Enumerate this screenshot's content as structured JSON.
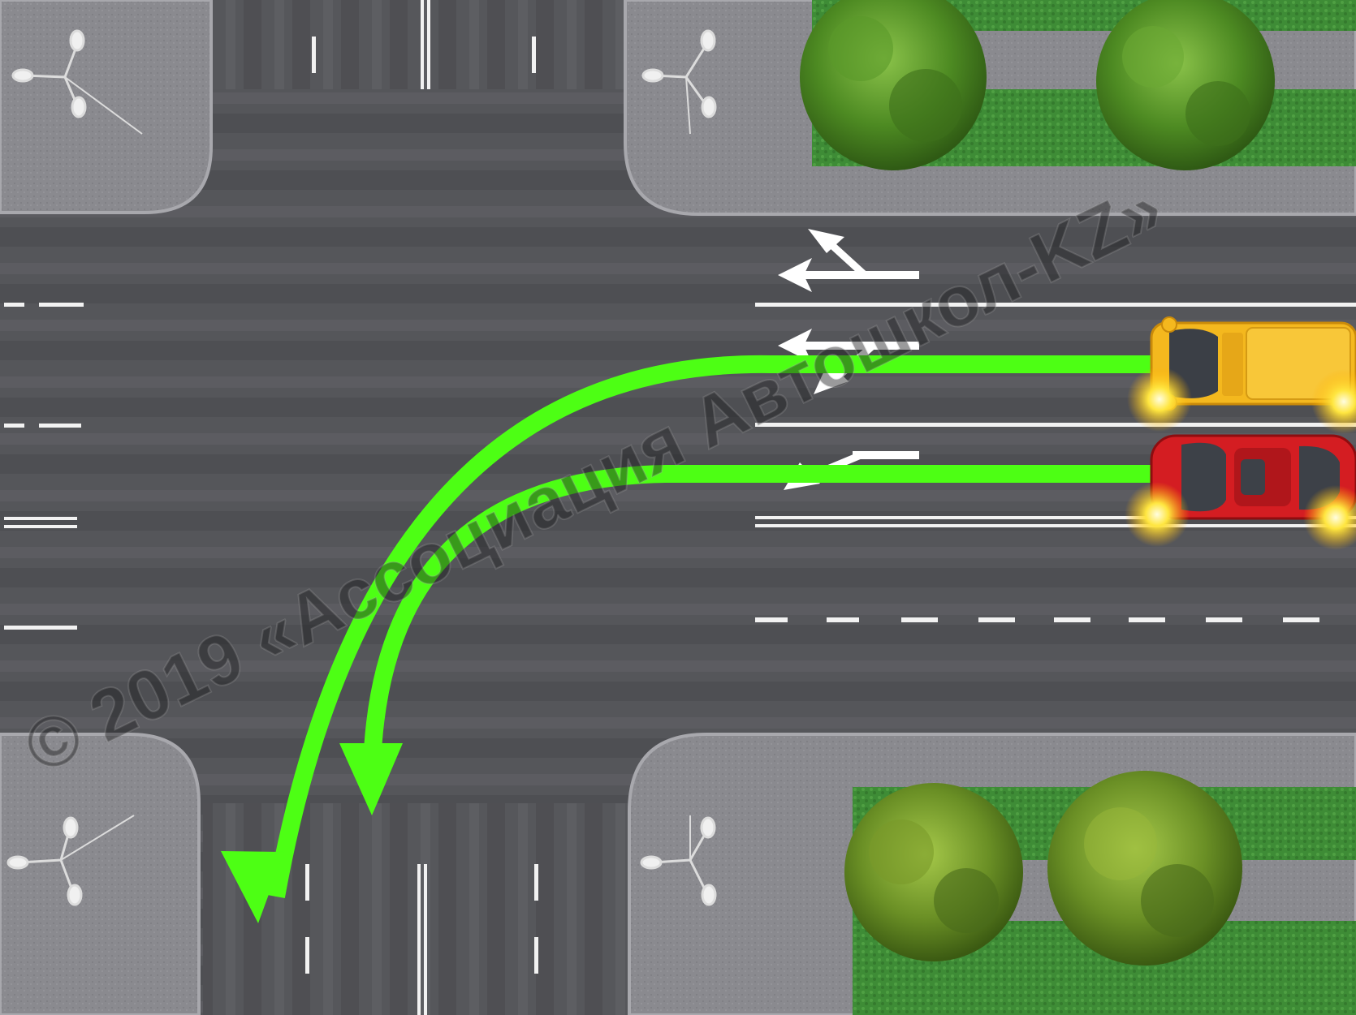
{
  "scene": {
    "description_type": "traffic-intersection-diagram",
    "colors": {
      "asphalt": "#555659",
      "sidewalk": "#8b8b90",
      "grass": "#3f8f37",
      "marking": "#f2f2f2",
      "path_green": "#4dff14",
      "car_yellow": "#f4b81e",
      "car_red": "#d41d22",
      "tree_green": "#4d8a22"
    },
    "vehicles": [
      {
        "name": "yellow-van",
        "color": "yellow",
        "signal": "hazard-lights-on"
      },
      {
        "name": "red-car",
        "color": "red",
        "signal": "hazard-lights-on"
      }
    ],
    "lane_arrows": [
      {
        "lane": "top",
        "directions": [
          "straight",
          "right"
        ]
      },
      {
        "lane": "middle",
        "directions": [
          "straight",
          "left"
        ]
      },
      {
        "lane": "bottom",
        "directions": [
          "left"
        ]
      }
    ]
  },
  "watermark": {
    "text": "© 2019 «Ассоциация Автошкол-KZ»"
  }
}
